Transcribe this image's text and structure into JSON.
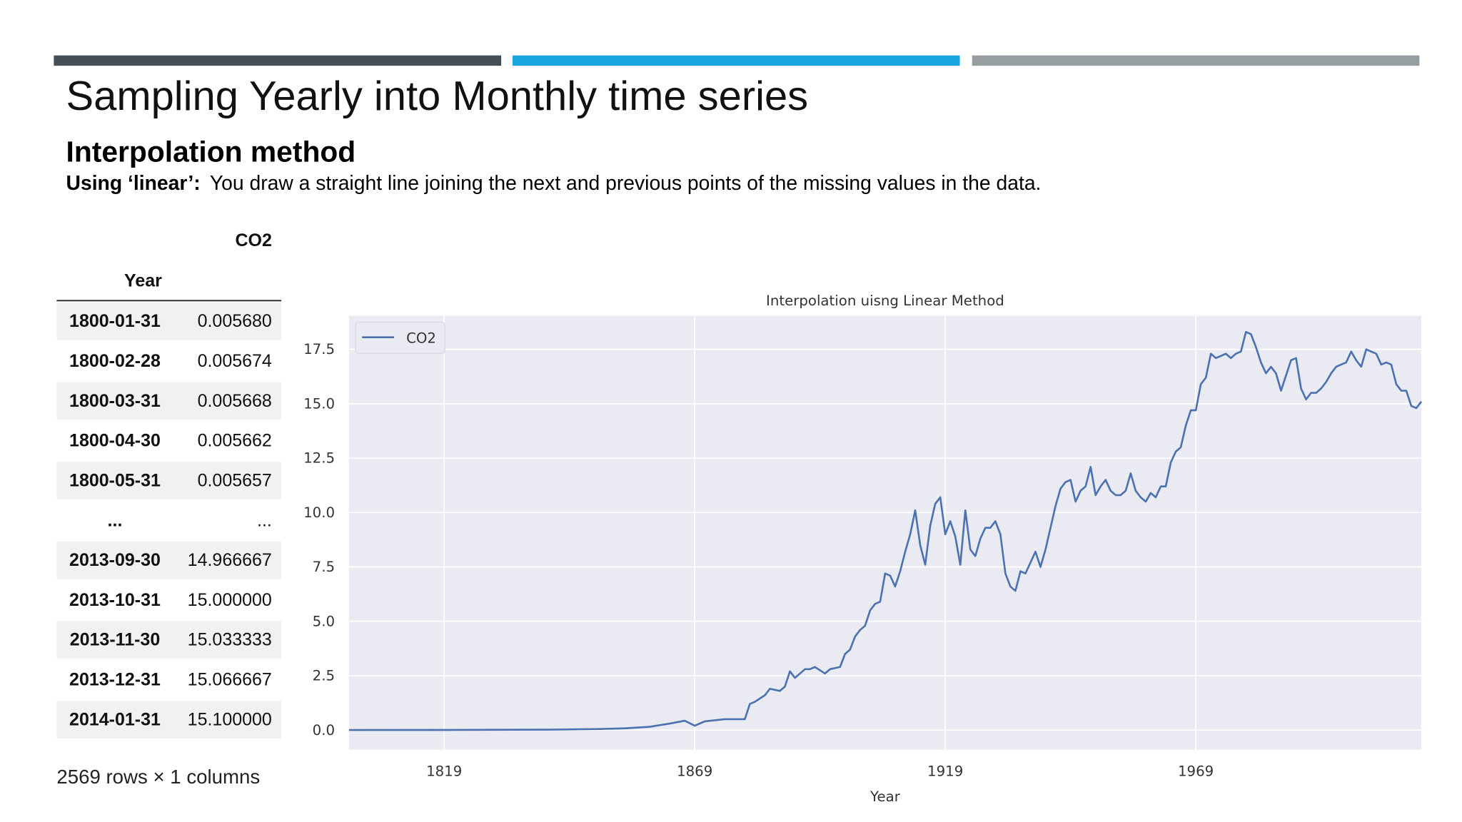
{
  "header": {
    "title": "Sampling Yearly into Monthly time series",
    "subtitle": "Interpolation method",
    "description": {
      "label": "Using ‘linear’:",
      "text": "You draw a straight line joining the next and previous points of the missing values in the data."
    }
  },
  "table": {
    "column": "CO2",
    "index_name": "Year",
    "rows": [
      [
        "1800-01-31",
        "0.005680"
      ],
      [
        "1800-02-28",
        "0.005674"
      ],
      [
        "1800-03-31",
        "0.005668"
      ],
      [
        "1800-04-30",
        "0.005662"
      ],
      [
        "1800-05-31",
        "0.005657"
      ],
      [
        "...",
        "..."
      ],
      [
        "2013-09-30",
        "14.966667"
      ],
      [
        "2013-10-31",
        "15.000000"
      ],
      [
        "2013-11-30",
        "15.033333"
      ],
      [
        "2013-12-31",
        "15.066667"
      ],
      [
        "2014-01-31",
        "15.100000"
      ]
    ],
    "footer": "2569 rows × 1 columns"
  },
  "chart_data": {
    "type": "line",
    "title": "Interpolation uisng Linear Method",
    "x_label": "Year",
    "x": [
      1800,
      1820,
      1840,
      1850,
      1855,
      1860,
      1864,
      1867,
      1869,
      1871,
      1873,
      1875,
      1879,
      1880,
      1881,
      1883,
      1884,
      1886,
      1887,
      1888,
      1889,
      1891,
      1892,
      1893,
      1895,
      1896,
      1898,
      1899,
      1900,
      1901,
      1902,
      1903,
      1904,
      1905,
      1906,
      1907,
      1908,
      1909,
      1910,
      1911,
      1912,
      1913,
      1914,
      1915,
      1916,
      1917,
      1918,
      1919,
      1920,
      1921,
      1922,
      1923,
      1924,
      1925,
      1926,
      1927,
      1928,
      1929,
      1930,
      1931,
      1932,
      1933,
      1934,
      1935,
      1936,
      1937,
      1938,
      1939,
      1940,
      1941,
      1942,
      1943,
      1944,
      1945,
      1946,
      1947,
      1948,
      1949,
      1950,
      1951,
      1952,
      1953,
      1954,
      1955,
      1956,
      1957,
      1958,
      1959,
      1960,
      1961,
      1962,
      1963,
      1964,
      1965,
      1966,
      1967,
      1968,
      1969,
      1970,
      1971,
      1972,
      1973,
      1974,
      1975,
      1976,
      1977,
      1978,
      1979,
      1980,
      1981,
      1982,
      1983,
      1984,
      1985,
      1986,
      1987,
      1988,
      1989,
      1990,
      1991,
      1992,
      1993,
      1994,
      1995,
      1996,
      1997,
      1998,
      1999,
      2000,
      2001,
      2002,
      2003,
      2004,
      2005,
      2006,
      2007,
      2008,
      2009,
      2010,
      2011,
      2012,
      2013,
      2014
    ],
    "series": [
      {
        "name": "CO2",
        "color": "#4c72b0",
        "values": [
          0.0057,
          0.006,
          0.02,
          0.05,
          0.08,
          0.15,
          0.3,
          0.43,
          0.2,
          0.4,
          0.45,
          0.5,
          0.5,
          1.2,
          1.3,
          1.6,
          1.9,
          1.8,
          2.0,
          2.7,
          2.4,
          2.8,
          2.8,
          2.9,
          2.6,
          2.8,
          2.9,
          3.5,
          3.7,
          4.3,
          4.6,
          4.8,
          5.5,
          5.8,
          5.9,
          7.2,
          7.1,
          6.6,
          7.3,
          8.2,
          9.0,
          10.1,
          8.5,
          7.6,
          9.4,
          10.4,
          10.7,
          9.0,
          9.6,
          8.9,
          7.6,
          10.1,
          8.3,
          8.0,
          8.8,
          9.3,
          9.3,
          9.6,
          9.0,
          7.2,
          6.6,
          6.4,
          7.3,
          7.2,
          7.7,
          8.2,
          7.5,
          8.3,
          9.3,
          10.3,
          11.1,
          11.4,
          11.5,
          10.5,
          11.0,
          11.2,
          12.1,
          10.8,
          11.2,
          11.5,
          11.0,
          10.8,
          10.8,
          11.0,
          11.8,
          11.0,
          10.7,
          10.5,
          10.9,
          10.7,
          11.2,
          11.2,
          12.3,
          12.8,
          13.0,
          14.0,
          14.7,
          14.7,
          15.9,
          16.2,
          17.3,
          17.1,
          17.2,
          17.3,
          17.1,
          17.3,
          17.4,
          18.3,
          18.2,
          17.6,
          16.9,
          16.4,
          16.7,
          16.4,
          15.6,
          16.3,
          17.0,
          17.1,
          15.7,
          15.2,
          15.5,
          15.5,
          15.7,
          16.0,
          16.4,
          16.7,
          16.8,
          16.9,
          17.4,
          17.0,
          16.7,
          17.5,
          17.4,
          17.3,
          16.8,
          16.9,
          16.8,
          15.9,
          15.6,
          15.6,
          14.9,
          14.8,
          15.1
        ]
      }
    ],
    "xlim": [
      1800,
      2014
    ],
    "xticks": [
      1819,
      1869,
      1919,
      1969
    ],
    "ylim": [
      -0.9,
      19.05
    ],
    "yticks": [
      {
        "value": 0,
        "label": "0.0"
      },
      2.5,
      {
        "value": 5,
        "label": "5.0"
      },
      7.5,
      {
        "value": 10,
        "label": "10.0"
      },
      12.5,
      {
        "value": 15,
        "label": "15.0"
      },
      17.5
    ],
    "grid": true,
    "legend": "upper left"
  }
}
